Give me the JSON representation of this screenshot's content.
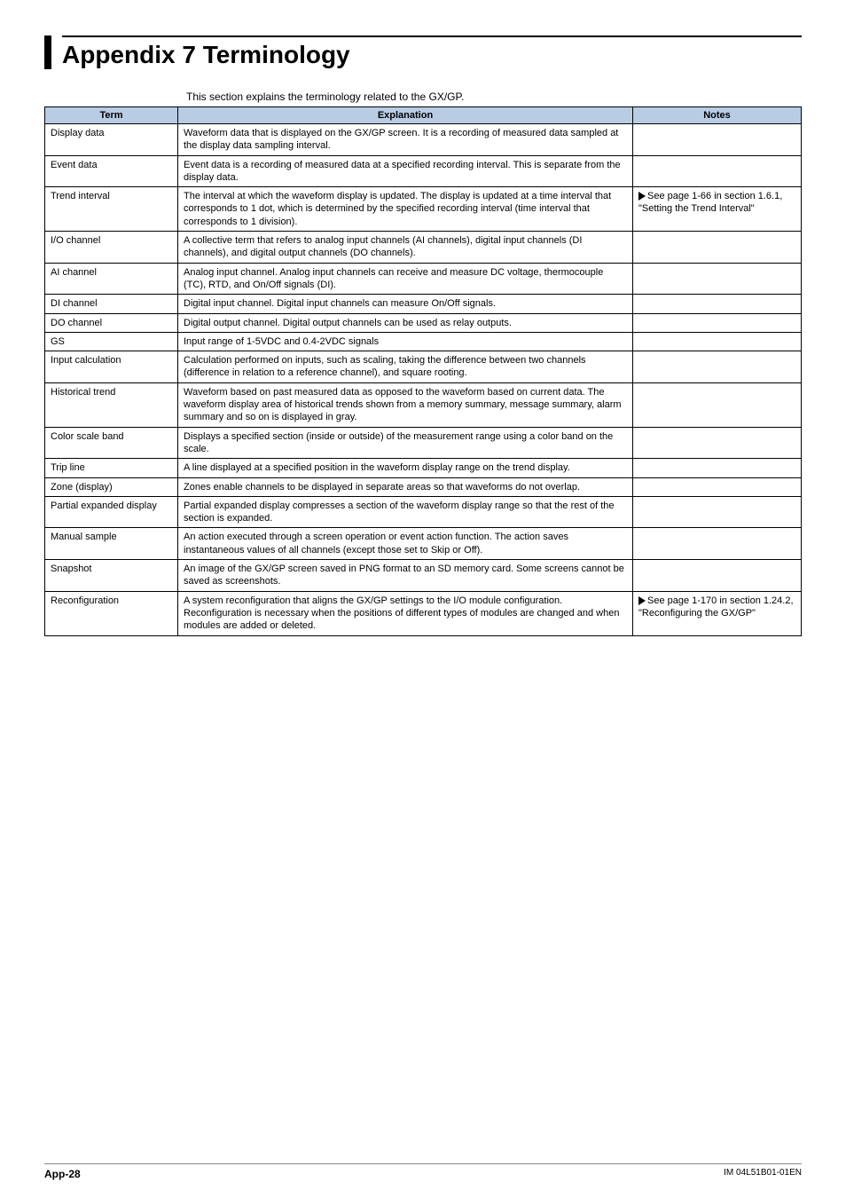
{
  "title": "Appendix  7   Terminology",
  "intro": "This section explains the terminology related to the GX/GP.",
  "headers": {
    "term": "Term",
    "explanation": "Explanation",
    "notes": "Notes"
  },
  "rows": [
    {
      "term": "Display data",
      "explanation": "Waveform data that is displayed on the GX/GP screen. It is a recording of measured data sampled at the display data sampling interval.",
      "notes": ""
    },
    {
      "term": "Event data",
      "explanation": "Event data is a recording of measured data at a specified recording interval. This is separate from the display data.",
      "notes": ""
    },
    {
      "term": "Trend interval",
      "explanation": "The interval at which the waveform display is updated. The display is updated at a time interval that corresponds to 1 dot, which is determined by the specified recording interval (time interval that corresponds to 1 division).",
      "notes": "See page 1-66 in section 1.6.1, \"Setting the Trend Interval\"",
      "has_arrow": true
    },
    {
      "term": "I/O channel",
      "explanation": "A collective term that refers to analog input channels (AI channels), digital input channels (DI channels), and digital output channels (DO channels).",
      "notes": ""
    },
    {
      "term": "AI channel",
      "explanation": "Analog input channel. Analog input channels can receive and measure DC voltage, thermocouple (TC), RTD, and On/Off signals (DI).",
      "notes": ""
    },
    {
      "term": "DI channel",
      "explanation": "Digital input channel. Digital input channels can measure On/Off signals.",
      "notes": ""
    },
    {
      "term": "DO channel",
      "explanation": "Digital output channel. Digital output channels can be used as relay outputs.",
      "notes": ""
    },
    {
      "term": "GS",
      "explanation": "Input range of 1-5VDC and 0.4-2VDC signals",
      "notes": ""
    },
    {
      "term": "Input calculation",
      "explanation": "Calculation performed on inputs, such as scaling, taking the difference between two channels (difference in relation to a reference channel), and square rooting.",
      "notes": ""
    },
    {
      "term": "Historical trend",
      "explanation": "Waveform based on past measured data as opposed to the waveform based on current data. The waveform display area of historical trends shown from a memory summary, message summary, alarm summary and so on is displayed in gray.",
      "notes": ""
    },
    {
      "term": "Color scale band",
      "explanation": "Displays a specified section (inside or outside) of the measurement range using a color band on the scale.",
      "notes": ""
    },
    {
      "term": "Trip line",
      "explanation": "A line displayed at a specified position in the waveform display range on the trend display.",
      "notes": ""
    },
    {
      "term": "Zone (display)",
      "explanation": "Zones enable channels to be displayed in separate areas so that waveforms do not overlap.",
      "notes": ""
    },
    {
      "term": "Partial expanded display",
      "explanation": "Partial expanded display compresses a section of the waveform display range so that the rest of the section is expanded.",
      "notes": ""
    },
    {
      "term": "Manual sample",
      "explanation": "An action executed through a screen operation or event action function. The action saves instantaneous values of all channels (except those set to Skip or Off).",
      "notes": ""
    },
    {
      "term": "Snapshot",
      "explanation": "An image of the GX/GP screen saved in PNG format to an SD memory card. Some screens cannot be saved as screenshots.",
      "notes": ""
    },
    {
      "term": "Reconfiguration",
      "explanation": "A system reconfiguration that aligns the GX/GP settings to the I/O module configuration.\nReconfiguration is necessary when the positions of different types of modules are changed and when modules are added or deleted.",
      "notes": "See page 1-170 in section 1.24.2, \"Reconfiguring the GX/GP\"",
      "has_arrow": true
    }
  ],
  "footer": {
    "page": "App-28",
    "doc": "IM 04L51B01-01EN"
  },
  "colors": {
    "header_bg": "#b8cce4",
    "border": "#000000",
    "text": "#000000",
    "footer_rule": "#888888"
  }
}
